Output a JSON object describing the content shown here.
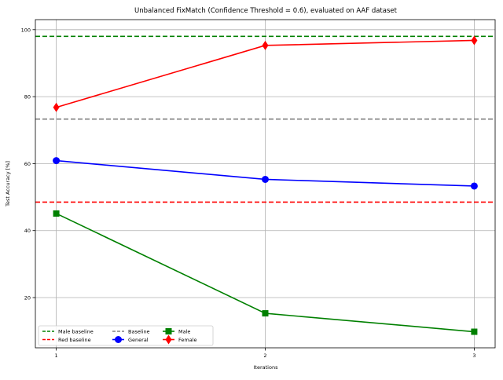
{
  "chart_data": {
    "type": "line",
    "title": "Unbalanced FixMatch (Confidence Threshold = 0.6), evaluated on AAF dataset",
    "xlabel": "Iterations",
    "ylabel": "Test Accuracy [%]",
    "x": [
      1,
      2,
      3
    ],
    "xticks": [
      "1",
      "2",
      "3"
    ],
    "yticks": [
      "20",
      "40",
      "60",
      "80",
      "100"
    ],
    "xlim": [
      0.9,
      3.1
    ],
    "ylim": [
      5,
      103
    ],
    "grid": true,
    "legend_position": "lower-left",
    "series": [
      {
        "name": "General",
        "values": [
          60.9,
          55.3,
          53.3
        ],
        "color": "#0000ff",
        "marker": "circle",
        "style": "solid"
      },
      {
        "name": "Male",
        "values": [
          45.1,
          15.3,
          9.8
        ],
        "color": "#008000",
        "marker": "square",
        "style": "solid"
      },
      {
        "name": "Female",
        "values": [
          76.8,
          95.3,
          96.8
        ],
        "color": "#ff0000",
        "marker": "diamond",
        "style": "solid"
      }
    ],
    "reference_lines": [
      {
        "name": "Male baseline",
        "value": 98.0,
        "color": "#008000",
        "style": "dashed"
      },
      {
        "name": "Red baseline",
        "value": 48.5,
        "color": "#ff0000",
        "style": "dashed"
      },
      {
        "name": "Baseline",
        "value": 73.3,
        "color": "#808080",
        "style": "dashed"
      }
    ],
    "legend": [
      "Male baseline",
      "Red baseline",
      "Baseline",
      "General",
      "Male",
      "Female"
    ]
  }
}
